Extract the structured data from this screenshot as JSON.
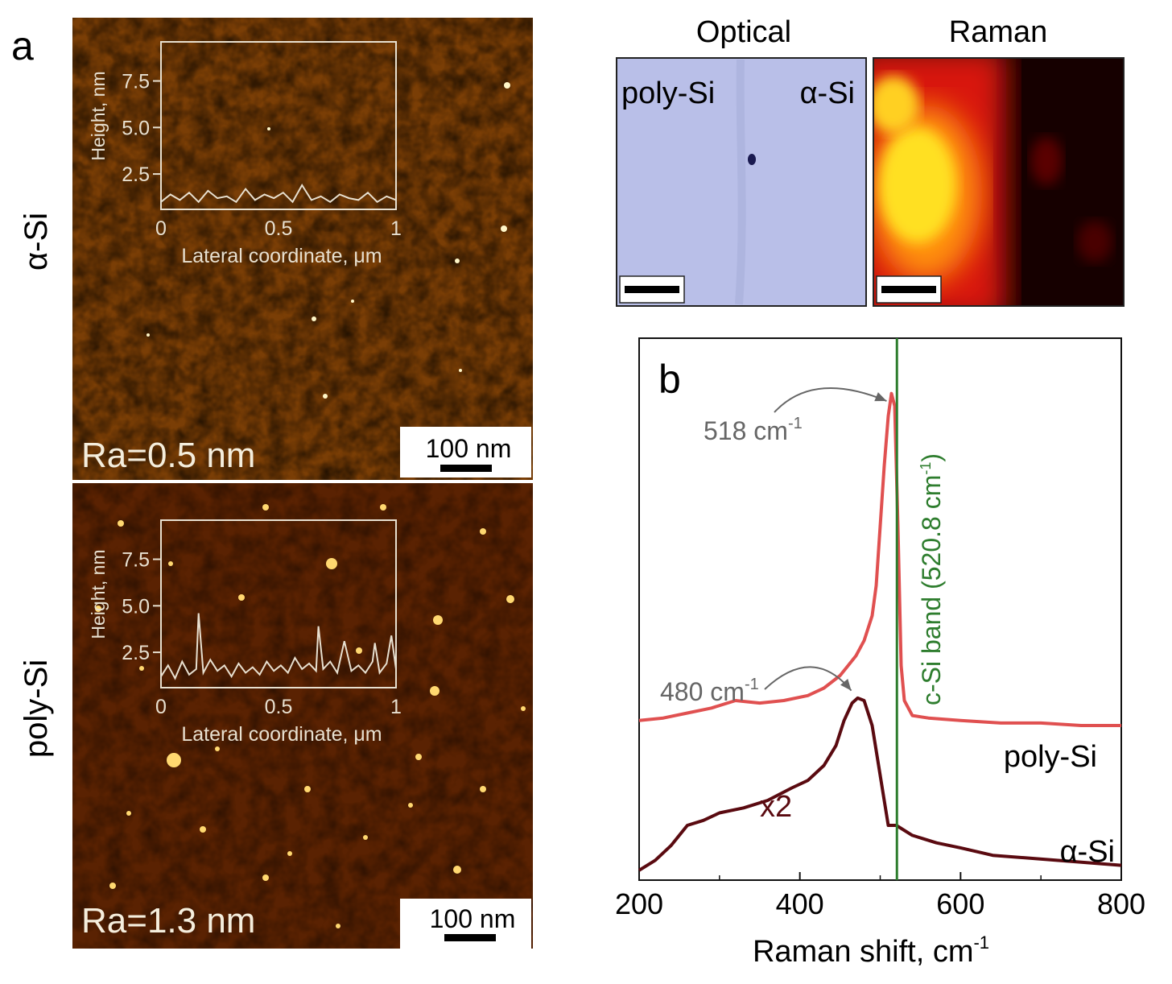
{
  "panel_a": {
    "label": "a",
    "top_sample": "α-Si",
    "bottom_sample": "poly-Si",
    "top_roughness": "Ra=0.5 nm",
    "bottom_roughness": "Ra=1.3 nm",
    "scale_bar": "100 nm",
    "colors": {
      "afm_dark": "#4a1c02",
      "afm_mid": "#8a4a08",
      "afm_bright": "#e8b030",
      "inset_line": "#e8e0d0"
    }
  },
  "optical_raman": {
    "optical_title": "Optical",
    "raman_title": "Raman",
    "optical_left": "poly-Si",
    "optical_right": "α-Si",
    "colors": {
      "optical_bg": "#b9bfe8",
      "raman_hot": "#ffe020",
      "raman_dark": "#140000"
    }
  },
  "chart_data": [
    {
      "type": "line",
      "name": "afm-inset-alpha-si",
      "xlabel": "Lateral coordinate, μm",
      "ylabel": "Height, nm",
      "xlim": [
        0,
        1
      ],
      "ylim": [
        0.6,
        9.6
      ],
      "xticks": [
        "0",
        "0.5",
        "1"
      ],
      "yticks": [
        "2.5",
        "5.0",
        "7.5"
      ],
      "x": [
        0,
        0.04,
        0.08,
        0.12,
        0.16,
        0.2,
        0.24,
        0.28,
        0.32,
        0.36,
        0.4,
        0.44,
        0.48,
        0.52,
        0.56,
        0.6,
        0.64,
        0.68,
        0.72,
        0.76,
        0.8,
        0.84,
        0.88,
        0.92,
        0.96,
        1.0
      ],
      "values": [
        1.0,
        1.4,
        1.1,
        1.5,
        1.0,
        1.6,
        1.2,
        1.3,
        1.0,
        1.7,
        1.1,
        1.4,
        1.2,
        1.5,
        1.0,
        1.9,
        1.1,
        1.3,
        1.0,
        1.4,
        1.2,
        1.1,
        1.5,
        1.0,
        1.3,
        1.1
      ]
    },
    {
      "type": "line",
      "name": "afm-inset-poly-si",
      "xlabel": "Lateral coordinate, μm",
      "ylabel": "Height, nm",
      "xlim": [
        0,
        1
      ],
      "ylim": [
        0.6,
        9.6
      ],
      "xticks": [
        "0",
        "0.5",
        "1"
      ],
      "yticks": [
        "2.5",
        "5.0",
        "7.5"
      ],
      "x": [
        0,
        0.03,
        0.06,
        0.09,
        0.12,
        0.15,
        0.16,
        0.18,
        0.21,
        0.24,
        0.27,
        0.3,
        0.33,
        0.36,
        0.39,
        0.42,
        0.45,
        0.48,
        0.51,
        0.54,
        0.57,
        0.6,
        0.63,
        0.66,
        0.67,
        0.69,
        0.72,
        0.75,
        0.78,
        0.81,
        0.84,
        0.87,
        0.9,
        0.91,
        0.93,
        0.96,
        0.98,
        1.0
      ],
      "values": [
        1.2,
        1.8,
        1.1,
        2.0,
        1.3,
        1.6,
        4.6,
        1.4,
        2.1,
        1.5,
        1.8,
        1.2,
        1.9,
        1.4,
        1.7,
        1.3,
        2.0,
        1.5,
        1.8,
        1.4,
        2.2,
        1.6,
        1.9,
        1.5,
        3.9,
        1.6,
        2.0,
        1.4,
        3.1,
        1.5,
        1.8,
        1.4,
        2.0,
        3.0,
        1.4,
        1.9,
        3.4,
        1.6
      ]
    },
    {
      "type": "line",
      "name": "raman-spectra",
      "label": "b",
      "xlabel": "Raman shift, cm",
      "xlabel_sup": "-1",
      "ylabel": "",
      "xlim": [
        200,
        800
      ],
      "ylim": [
        0,
        100
      ],
      "xticks": [
        "200",
        "400",
        "600",
        "800"
      ],
      "series": [
        {
          "name": "poly-Si",
          "color": "#e05050",
          "x": [
            200,
            230,
            260,
            290,
            320,
            350,
            380,
            410,
            430,
            450,
            460,
            470,
            480,
            490,
            495,
            500,
            505,
            510,
            514,
            518,
            522,
            526,
            530,
            540,
            560,
            600,
            650,
            700,
            750,
            800
          ],
          "values": [
            31.0,
            31.5,
            32.5,
            33.5,
            35.0,
            34.5,
            35.0,
            36.0,
            37.5,
            40.0,
            42.0,
            44.0,
            47.0,
            52.0,
            58.0,
            70.0,
            82.0,
            92.0,
            96.5,
            94.0,
            70.0,
            42.0,
            35.0,
            32.0,
            31.5,
            31.0,
            30.5,
            30.5,
            30.0,
            30.0
          ]
        },
        {
          "name": "α-Si",
          "color": "#5a0a10",
          "x": [
            200,
            220,
            240,
            260,
            280,
            300,
            330,
            360,
            390,
            410,
            430,
            445,
            455,
            465,
            472,
            480,
            490,
            500,
            510,
            520,
            540,
            570,
            600,
            640,
            680,
            720,
            760,
            800
          ],
          "values": [
            1.0,
            3.0,
            6.0,
            10.0,
            11.0,
            12.5,
            13.5,
            15.0,
            17.5,
            19.0,
            22.0,
            26.0,
            31.0,
            34.5,
            35.5,
            35.0,
            30.0,
            20.0,
            10.0,
            10.0,
            8.0,
            6.5,
            5.5,
            4.0,
            3.5,
            3.0,
            2.5,
            2.0
          ]
        }
      ],
      "reference_line": {
        "x": 520.8,
        "label": "c-Si band (520.8 cm",
        "label_sup": "-1",
        "label_end": ")",
        "color": "#2e7d2e"
      },
      "annotations": [
        {
          "text": "518 cm",
          "sup": "-1",
          "target_x": 514
        },
        {
          "text": "480 cm",
          "sup": "-1",
          "target_x": 472
        }
      ],
      "series_labels": {
        "poly_si": "poly-Si",
        "alpha_si": "α-Si",
        "multiplier": "x2"
      }
    }
  ]
}
